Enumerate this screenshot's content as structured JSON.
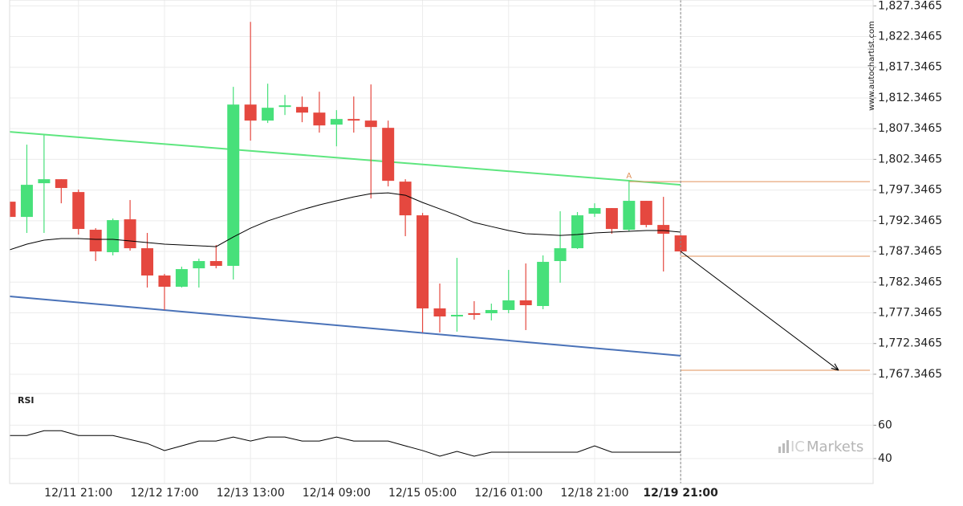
{
  "chart_data": [
    {
      "type": "candlestick",
      "categories": [
        null,
        null,
        null,
        null,
        "12/11 21:00",
        null,
        null,
        null,
        null,
        "12/12 17:00",
        null,
        null,
        null,
        null,
        "12/13 13:00",
        null,
        null,
        null,
        null,
        "12/14 09:00",
        null,
        null,
        null,
        null,
        "12/15 05:00",
        null,
        null,
        null,
        null,
        "12/16 01:00",
        null,
        null,
        null,
        null,
        "12/18 21:00",
        null,
        null,
        null,
        null,
        "12/19 21:00"
      ],
      "open": [
        1795.45,
        1792.97,
        1798.46,
        1799.11,
        1797.02,
        1790.88,
        1787.22,
        1792.58,
        1787.87,
        1783.43,
        1781.6,
        1784.6,
        1785.78,
        1785.0,
        1811.27,
        1808.66,
        1810.88,
        1810.88,
        1809.96,
        1808.0,
        1808.92,
        1808.66,
        1807.48,
        1798.72,
        1793.23,
        1778.07,
        1776.76,
        1777.28,
        1777.28,
        1777.81,
        1779.38,
        1778.46,
        1785.78,
        1787.87,
        1793.49,
        1794.41,
        1790.88,
        1795.59,
        1791.66,
        1789.96
      ],
      "high": [
        1795.45,
        1804.74,
        1806.3,
        1799.11,
        1797.42,
        1791.14,
        1792.71,
        1795.72,
        1790.36,
        1783.69,
        1784.87,
        1786.17,
        1788.4,
        1814.15,
        1824.74,
        1814.67,
        1812.84,
        1812.58,
        1813.36,
        1810.36,
        1812.58,
        1814.54,
        1808.66,
        1799.11,
        1793.62,
        1782.12,
        1786.3,
        1779.25,
        1778.85,
        1784.34,
        1785.39,
        1786.7,
        1793.89,
        1793.76,
        1795.19,
        1794.41,
        1798.85,
        1795.59,
        1796.24,
        1789.96
      ],
      "low": [
        1792.97,
        1790.36,
        1790.36,
        1795.19,
        1790.1,
        1785.78,
        1786.7,
        1787.48,
        1781.47,
        1777.81,
        1781.47,
        1781.47,
        1784.6,
        1782.77,
        1805.39,
        1808.27,
        1809.57,
        1808.4,
        1806.7,
        1804.47,
        1806.7,
        1795.98,
        1797.94,
        1789.83,
        1774.15,
        1774.15,
        1774.28,
        1776.24,
        1776.11,
        1777.28,
        1774.54,
        1777.94,
        1782.25,
        1787.74,
        1792.97,
        1790.23,
        1790.62,
        1791.27,
        1784.08,
        1786.96
      ],
      "close": [
        1792.97,
        1798.2,
        1799.11,
        1797.68,
        1791.01,
        1787.35,
        1792.45,
        1787.87,
        1783.43,
        1781.6,
        1784.47,
        1785.78,
        1785.0,
        1811.27,
        1808.66,
        1810.75,
        1811.14,
        1809.96,
        1807.87,
        1808.92,
        1808.66,
        1807.61,
        1798.85,
        1793.23,
        1778.07,
        1776.76,
        1777.02,
        1777.02,
        1777.81,
        1779.38,
        1778.59,
        1785.65,
        1787.87,
        1793.23,
        1794.41,
        1791.01,
        1795.59,
        1791.66,
        1790.23,
        1787.35
      ],
      "up_color": "#47e07a",
      "down_color": "#e5483f",
      "moving_average": {
        "color": "#000000",
        "values": [
          1787.61,
          1788.53,
          1789.18,
          1789.44,
          1789.44,
          1789.31,
          1789.31,
          1789.05,
          1788.79,
          1788.53,
          1788.4,
          1788.27,
          1788.13,
          1789.7,
          1791.14,
          1792.32,
          1793.23,
          1794.15,
          1794.93,
          1795.59,
          1796.24,
          1796.76,
          1796.89,
          1796.5,
          1795.32,
          1794.28,
          1793.23,
          1792.06,
          1791.4,
          1790.75,
          1790.23,
          1790.1,
          1789.96,
          1790.1,
          1790.36,
          1790.49,
          1790.62,
          1790.75,
          1790.75,
          1790.49
        ]
      },
      "trendlines": [
        {
          "color": "#5ee67f",
          "values": [
            1806.83,
            1798.2
          ]
        },
        {
          "color": "#4a72b8",
          "values": [
            1780.03,
            1770.36
          ]
        }
      ],
      "levels": [
        1798.72,
        1786.57,
        1768.0
      ],
      "level_color": "#e0915a",
      "pattern_label": "A",
      "forecast": [
        1787.35,
        1768.0
      ],
      "ylim": [
        1764.2,
        1828.3
      ],
      "yticks": [
        {
          "value": 1767.3465,
          "label": "1,767.3465"
        },
        {
          "value": 1772.3465,
          "label": "1,772.3465"
        },
        {
          "value": 1777.3465,
          "label": "1,777.3465"
        },
        {
          "value": 1782.3465,
          "label": "1,782.3465"
        },
        {
          "value": 1787.3465,
          "label": "1,787.3465"
        },
        {
          "value": 1792.3465,
          "label": "1,792.3465"
        },
        {
          "value": 1797.3465,
          "label": "1,797.3465"
        },
        {
          "value": 1802.3465,
          "label": "1,802.3465"
        },
        {
          "value": 1807.3465,
          "label": "1,807.3465"
        },
        {
          "value": 1812.3465,
          "label": "1,812.3465"
        },
        {
          "value": 1817.3465,
          "label": "1,817.3465"
        },
        {
          "value": 1822.3465,
          "label": "1,822.3465"
        },
        {
          "value": 1827.3465,
          "label": "1,827.3465"
        }
      ],
      "grid": true
    },
    {
      "type": "line",
      "title": "RSI",
      "color": "#000000",
      "values": [
        53.8,
        53.8,
        56.7,
        56.7,
        53.8,
        53.8,
        53.8,
        51.4,
        49.0,
        44.8,
        47.6,
        50.5,
        50.5,
        52.9,
        50.5,
        52.9,
        52.9,
        50.5,
        50.5,
        52.9,
        50.5,
        50.5,
        50.5,
        47.6,
        44.8,
        41.4,
        44.3,
        41.4,
        43.8,
        43.8,
        43.8,
        43.8,
        43.8,
        43.8,
        47.6,
        43.8,
        43.8,
        43.8,
        43.8,
        43.8
      ],
      "ylim": [
        25,
        79
      ],
      "yticks": [
        40,
        60
      ],
      "grid": true
    }
  ],
  "watermark": "www.autochartist.com",
  "brand": {
    "prefix": "IC",
    "name": "Markets"
  }
}
